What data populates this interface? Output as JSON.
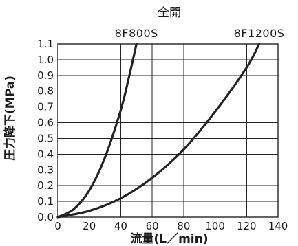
{
  "chart_data": {
    "type": "line",
    "title": "全開",
    "xlabel": "流量(L／min)",
    "ylabel": "圧力降下(MPa)",
    "xlim": [
      0,
      140
    ],
    "ylim": [
      0,
      1.1
    ],
    "x_ticks": [
      "0",
      "20",
      "40",
      "60",
      "80",
      "100",
      "120",
      "140"
    ],
    "y_ticks": [
      "0.0",
      "0.1",
      "0.2",
      "0.3",
      "0.4",
      "0.5",
      "0.6",
      "0.7",
      "0.8",
      "0.9",
      "1.0",
      "1.1"
    ],
    "grid": true,
    "series": [
      {
        "name": "8F800S",
        "x": [
          0,
          10,
          20,
          30,
          40,
          45,
          50
        ],
        "y": [
          0,
          0.05,
          0.17,
          0.38,
          0.68,
          0.88,
          1.1
        ]
      },
      {
        "name": "8F1200S",
        "x": [
          0,
          20,
          40,
          60,
          80,
          100,
          120,
          128
        ],
        "y": [
          0,
          0.04,
          0.12,
          0.25,
          0.43,
          0.67,
          0.95,
          1.1
        ]
      }
    ]
  }
}
